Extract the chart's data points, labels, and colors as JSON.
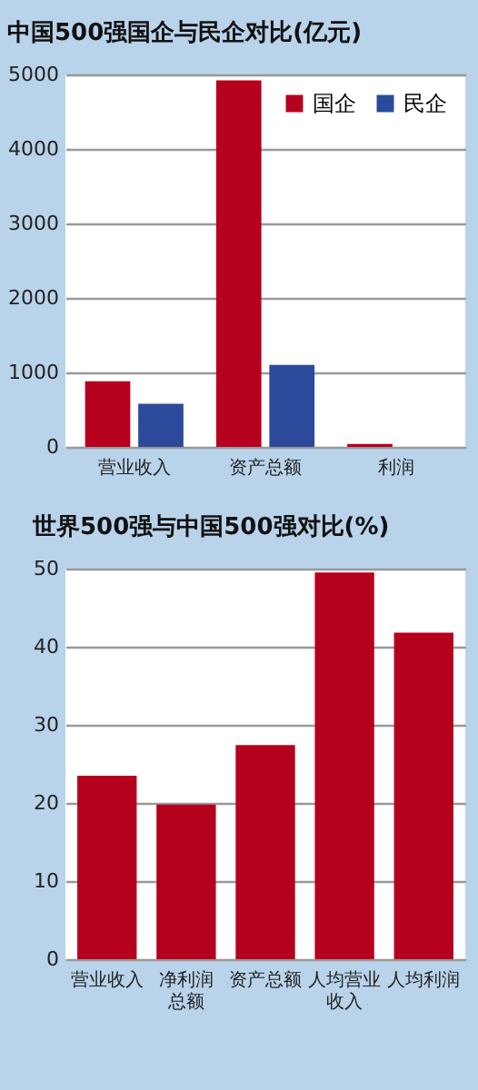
{
  "chart_data": [
    {
      "type": "bar",
      "title": "中国500强国企与民企对比(亿元)",
      "categories": [
        "营业收入",
        "资产总额",
        "利润"
      ],
      "series": [
        {
          "name": "国企",
          "color": "#b5001e",
          "values": [
            880,
            4920,
            40
          ]
        },
        {
          "name": "民企",
          "color": "#2b4a9b",
          "values": [
            580,
            1100,
            0
          ]
        }
      ],
      "ylim": [
        0,
        5000
      ],
      "yticks": [
        0,
        1000,
        2000,
        3000,
        4000,
        5000
      ],
      "grid": "y",
      "legend": "top right"
    },
    {
      "type": "bar",
      "title": "世界500强与中国500强对比(%)",
      "categories": [
        "营业收入",
        "净利润总额",
        "资产总额",
        "人均营业收入",
        "人均利润"
      ],
      "series": [
        {
          "color": "#b5001e",
          "values": [
            23.5,
            19.8,
            27.4,
            49.5,
            41.8
          ]
        }
      ],
      "ylim": [
        0,
        50
      ],
      "yticks": [
        0,
        10,
        20,
        30,
        40,
        50
      ],
      "grid": "y"
    }
  ]
}
